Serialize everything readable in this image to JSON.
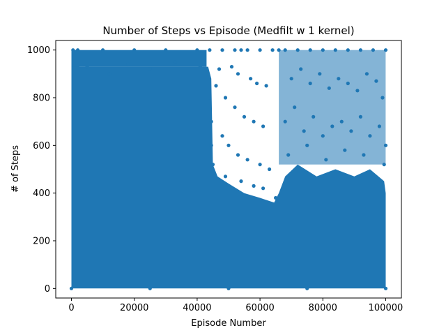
{
  "chart_data": {
    "type": "scatter",
    "title": "Number of Steps vs Episode (Medfilt w 1 kernel)",
    "xlabel": "Episode Number",
    "ylabel": "# of Steps",
    "xlim": [
      -5000,
      105000
    ],
    "ylim": [
      -40,
      1040
    ],
    "x_ticks": [
      0,
      20000,
      40000,
      60000,
      80000,
      100000
    ],
    "y_ticks": [
      0,
      200,
      400,
      600,
      800,
      1000
    ],
    "x_tick_labels": [
      "0",
      "20000",
      "40000",
      "60000",
      "80000",
      "100000"
    ],
    "y_tick_labels": [
      "0",
      "200",
      "400",
      "600",
      "800",
      "1000"
    ],
    "grid": false,
    "marker_color": "#1f77b4",
    "series": [
      {
        "marker": "filled circle",
        "x_range": [
          0,
          100000
        ],
        "y_range": [
          0,
          1000
        ],
        "points": [
          [
            0,
            0
          ],
          [
            500,
            1000
          ],
          [
            2000,
            1000
          ],
          [
            10000,
            1000
          ],
          [
            20000,
            1000
          ],
          [
            30000,
            1000
          ],
          [
            40000,
            1000
          ],
          [
            44000,
            1000
          ],
          [
            48000,
            1000
          ],
          [
            52000,
            1000
          ],
          [
            54000,
            1000
          ],
          [
            56000,
            1000
          ],
          [
            60000,
            1000
          ],
          [
            64000,
            1000
          ],
          [
            66000,
            1000
          ],
          [
            68000,
            1000
          ],
          [
            72000,
            1000
          ],
          [
            76000,
            1000
          ],
          [
            80000,
            1000
          ],
          [
            84000,
            1000
          ],
          [
            88000,
            1000
          ],
          [
            92000,
            1000
          ],
          [
            96000,
            1000
          ],
          [
            100000,
            1000
          ],
          [
            47000,
            920
          ],
          [
            51000,
            930
          ],
          [
            53000,
            900
          ],
          [
            57000,
            880
          ],
          [
            59000,
            860
          ],
          [
            62000,
            850
          ],
          [
            46000,
            850
          ],
          [
            49000,
            800
          ],
          [
            52000,
            760
          ],
          [
            55000,
            720
          ],
          [
            58000,
            700
          ],
          [
            61000,
            680
          ],
          [
            48000,
            640
          ],
          [
            50000,
            600
          ],
          [
            53000,
            560
          ],
          [
            56000,
            540
          ],
          [
            60000,
            520
          ],
          [
            63000,
            500
          ],
          [
            45000,
            520
          ],
          [
            49000,
            470
          ],
          [
            54000,
            450
          ],
          [
            58000,
            430
          ],
          [
            61000,
            420
          ],
          [
            65000,
            380
          ],
          [
            70000,
            880
          ],
          [
            73000,
            920
          ],
          [
            76000,
            860
          ],
          [
            79000,
            900
          ],
          [
            82000,
            840
          ],
          [
            85000,
            880
          ],
          [
            88000,
            860
          ],
          [
            91000,
            830
          ],
          [
            94000,
            900
          ],
          [
            97000,
            870
          ],
          [
            99000,
            800
          ],
          [
            68000,
            700
          ],
          [
            71000,
            760
          ],
          [
            74000,
            660
          ],
          [
            77000,
            720
          ],
          [
            80000,
            640
          ],
          [
            83000,
            680
          ],
          [
            86000,
            700
          ],
          [
            89000,
            660
          ],
          [
            92000,
            720
          ],
          [
            95000,
            640
          ],
          [
            98000,
            680
          ],
          [
            100000,
            600
          ],
          [
            69000,
            560
          ],
          [
            75000,
            600
          ],
          [
            81000,
            540
          ],
          [
            87000,
            580
          ],
          [
            93000,
            560
          ],
          [
            99500,
            520
          ],
          [
            5000,
            930
          ],
          [
            12000,
            900
          ],
          [
            18000,
            940
          ],
          [
            25000,
            920
          ],
          [
            33000,
            950
          ],
          [
            41000,
            930
          ],
          [
            44500,
            700
          ],
          [
            44500,
            600
          ],
          [
            44000,
            800
          ],
          [
            100000,
            0
          ],
          [
            50000,
            0
          ],
          [
            25000,
            0
          ],
          [
            75000,
            0
          ]
        ]
      }
    ]
  }
}
